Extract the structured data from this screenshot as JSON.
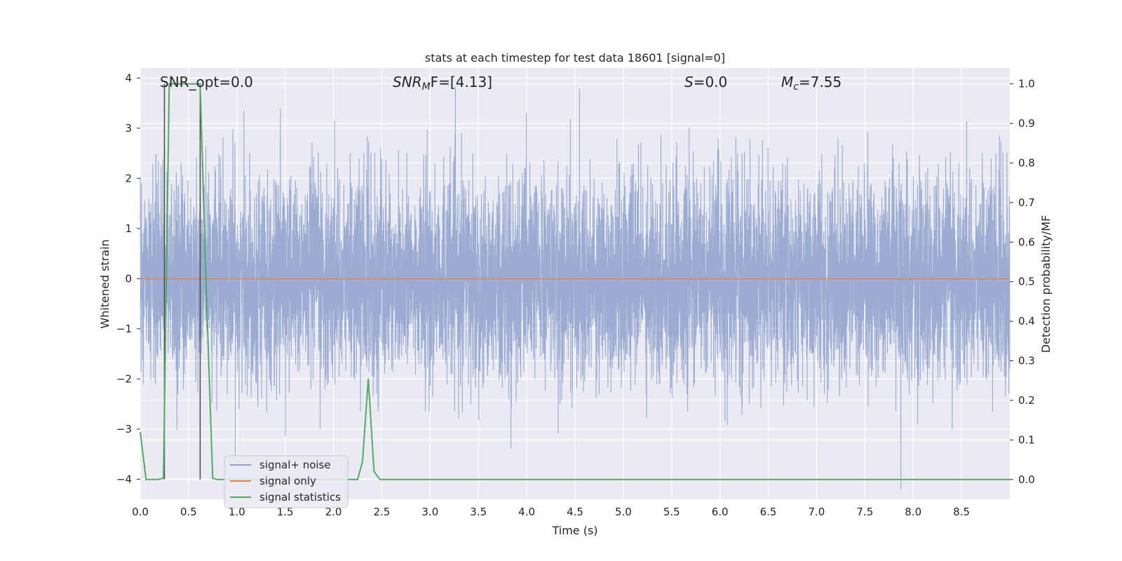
{
  "chart_data": {
    "type": "line",
    "title": "stats at each timestep for test data 18601 [signal=0]",
    "xlabel": "Time (s)",
    "ylabel_left": "Whitened strain",
    "ylabel_right": "Detection probability/MF",
    "xlim": [
      0.0,
      9.0
    ],
    "ylim_left": [
      -4.4,
      4.2
    ],
    "ylim_right": [
      -0.05,
      1.04
    ],
    "xticks": [
      0.0,
      0.5,
      1.0,
      1.5,
      2.0,
      2.5,
      3.0,
      3.5,
      4.0,
      4.5,
      5.0,
      5.5,
      6.0,
      6.5,
      7.0,
      7.5,
      8.0,
      8.5
    ],
    "xtick_labels": [
      "0.0",
      "0.5",
      "1.0",
      "1.5",
      "2.0",
      "2.5",
      "3.0",
      "3.5",
      "4.0",
      "4.5",
      "5.0",
      "5.5",
      "6.0",
      "6.5",
      "7.0",
      "7.5",
      "8.0",
      "8.5"
    ],
    "yticks_left": [
      -4,
      -3,
      -2,
      -1,
      0,
      1,
      2,
      3,
      4
    ],
    "ytick_labels_left": [
      "−4",
      "−3",
      "−2",
      "−1",
      "0",
      "1",
      "2",
      "3",
      "4"
    ],
    "yticks_right": [
      0.0,
      0.1,
      0.2,
      0.3,
      0.4,
      0.5,
      0.6,
      0.7,
      0.8,
      0.9,
      1.0
    ],
    "ytick_labels_right": [
      "0.0",
      "0.1",
      "0.2",
      "0.3",
      "0.4",
      "0.5",
      "0.6",
      "0.7",
      "0.8",
      "0.9",
      "1.0"
    ],
    "grid": true,
    "legend_position": "lower-left",
    "annotations": {
      "snr_opt": "SNR_opt=0.0",
      "snr_mf_main": "SNR",
      "snr_mf_sub": "M",
      "snr_mf_tail": "F=[4.13]",
      "s_main": "S",
      "s_tail": "=0.0",
      "mc_main": "M",
      "mc_sub": "c",
      "mc_tail": "=7.55"
    },
    "vertical_lines_x": [
      0.25,
      0.62
    ],
    "series": [
      {
        "name": "signal+ noise",
        "color": "#8da0cb",
        "kind": "noise",
        "axis": "left",
        "amplitude_std": 1.0,
        "x_range": [
          0.0,
          9.0
        ]
      },
      {
        "name": "signal only",
        "color": "#dd8452",
        "axis": "left",
        "x": [
          0.0,
          9.0
        ],
        "y": [
          0.0,
          0.0
        ]
      },
      {
        "name": "signal statistics",
        "color": "#55a868",
        "axis": "right",
        "x": [
          0.0,
          0.06,
          0.18,
          0.24,
          0.3,
          0.36,
          0.42,
          0.48,
          0.54,
          0.62,
          0.68,
          0.75,
          0.8,
          0.9,
          1.0,
          1.2,
          1.5,
          1.8,
          2.0,
          2.15,
          2.25,
          2.3,
          2.36,
          2.42,
          2.48,
          2.6,
          3.0,
          4.0,
          5.0,
          6.0,
          7.0,
          8.0,
          9.0
        ],
        "y": [
          0.12,
          0.0,
          0.0,
          0.003,
          1.0,
          1.0,
          1.0,
          1.0,
          1.0,
          1.0,
          0.5,
          0.003,
          0.0,
          0.0,
          0.0,
          0.0,
          0.0,
          0.0,
          0.0,
          0.0,
          0.0,
          0.045,
          0.255,
          0.02,
          0.0,
          0.0,
          0.0,
          0.0,
          0.0,
          0.0,
          0.0,
          0.0,
          0.0
        ]
      }
    ]
  }
}
